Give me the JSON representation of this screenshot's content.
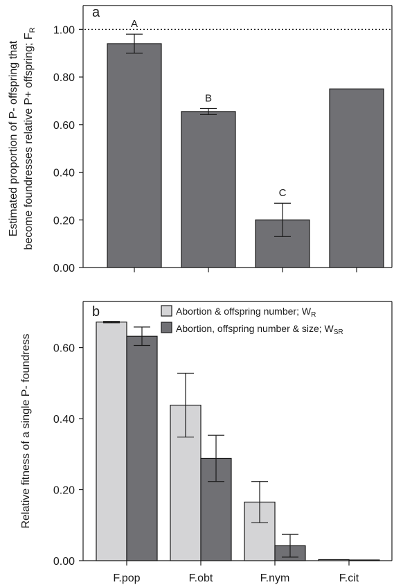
{
  "chart_data": [
    {
      "type": "bar",
      "panel_label": "a",
      "ylabel_lines": [
        "Estimated proportion of P- offspring that",
        "become foundresses relative P+ offspring; F"
      ],
      "ylabel_subscript": "R",
      "ylim": [
        0,
        1.1
      ],
      "yticks": [
        "0.00",
        "0.20",
        "0.40",
        "0.60",
        "0.80",
        "1.00"
      ],
      "ytick_values": [
        0,
        0.2,
        0.4,
        0.6,
        0.8,
        1.0
      ],
      "reference_line": 1.0,
      "categories": [
        "",
        "",
        "",
        ""
      ],
      "values": [
        0.94,
        0.655,
        0.2,
        0.75
      ],
      "errors": [
        0.04,
        0.013,
        0.07,
        null
      ],
      "letters": [
        "A",
        "B",
        "C",
        ""
      ],
      "bar_color": "#707074",
      "grid": false
    },
    {
      "type": "bar",
      "panel_label": "b",
      "ylabel": "Relative fitness of a single P- foundress",
      "ylim": [
        0,
        0.73
      ],
      "yticks": [
        "0.00",
        "0.20",
        "0.40",
        "0.60"
      ],
      "ytick_values": [
        0,
        0.2,
        0.4,
        0.6
      ],
      "categories": [
        "F.pop",
        "F.obt",
        "F.nym",
        "F.cit"
      ],
      "legend_position": "top-right",
      "series": [
        {
          "name": "Abortion & offspring number; W",
          "subscript": "R",
          "color": "#d4d4d6",
          "values": [
            0.672,
            0.438,
            0.165,
            0.003
          ],
          "errors": [
            0.002,
            0.09,
            0.058,
            0.0
          ]
        },
        {
          "name": "Abortion, offspring number & size; W",
          "subscript": "SR",
          "color": "#707074",
          "values": [
            0.632,
            0.288,
            0.042,
            0.002
          ],
          "errors": [
            0.026,
            0.065,
            0.032,
            0.0
          ]
        }
      ],
      "grid": false
    }
  ]
}
